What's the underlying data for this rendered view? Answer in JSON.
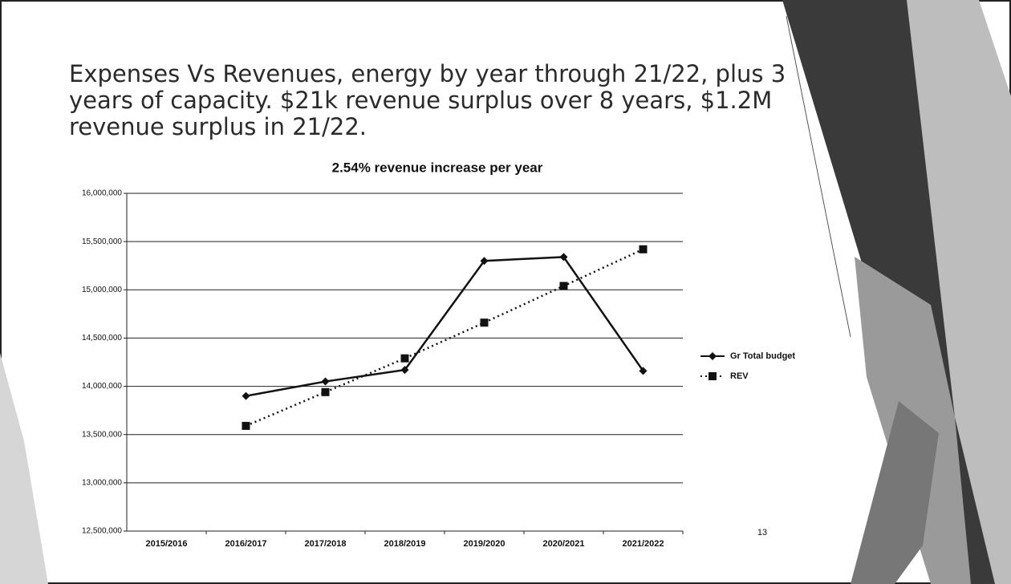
{
  "slide_title": "Expenses Vs Revenues, energy by year through 21/22, plus 3 years of capacity.  $21k revenue surplus over 8 years, $1.2M revenue surplus in 21/22.",
  "page_number": "13",
  "chart_data": {
    "type": "line",
    "title": "2.54% revenue increase per year",
    "categories": [
      "2015/2016",
      "2016/2017",
      "2017/2018",
      "2018/2019",
      "2019/2020",
      "2020/2021",
      "2021/2022"
    ],
    "series": [
      {
        "name": "Gr Total budget",
        "color": "#111111",
        "marker": "diamond",
        "line_style": "solid",
        "values": [
          null,
          13900000,
          14050000,
          14170000,
          15300000,
          15340000,
          14160000
        ]
      },
      {
        "name": "REV",
        "color": "#111111",
        "marker": "square",
        "line_style": "dotted",
        "values": [
          null,
          13590000,
          13940000,
          14290000,
          14660000,
          15040000,
          15420000
        ]
      }
    ],
    "ylim": [
      12500000,
      16000000
    ],
    "yticks": [
      {
        "value": 12500000,
        "label": "12,500,000"
      },
      {
        "value": 13000000,
        "label": "13,000,000"
      },
      {
        "value": 13500000,
        "label": "13,500,000"
      },
      {
        "value": 14000000,
        "label": "14,000,000"
      },
      {
        "value": 14500000,
        "label": "14,500,000"
      },
      {
        "value": 15000000,
        "label": "15,000,000"
      },
      {
        "value": 15500000,
        "label": "15,500,000"
      },
      {
        "value": 16000000,
        "label": "16,000,000"
      }
    ],
    "grid": true,
    "legend": "right"
  }
}
